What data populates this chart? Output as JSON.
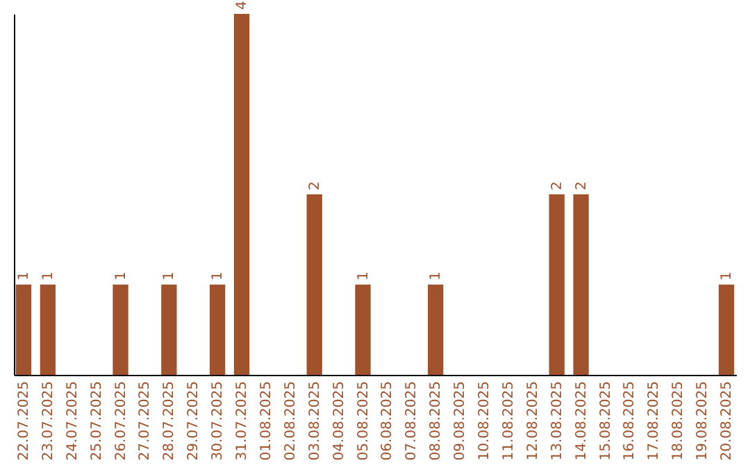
{
  "chart_data": {
    "type": "bar",
    "categories": [
      "22.07.2025",
      "23.07.2025",
      "24.07.2025",
      "25.07.2025",
      "26.07.2025",
      "27.07.2025",
      "28.07.2025",
      "29.07.2025",
      "30.07.2025",
      "31.07.2025",
      "01.08.2025",
      "02.08.2025",
      "03.08.2025",
      "04.08.2025",
      "05.08.2025",
      "06.08.2025",
      "07.08.2025",
      "08.08.2025",
      "09.08.2025",
      "10.08.2025",
      "11.08.2025",
      "12.08.2025",
      "13.08.2025",
      "14.08.2025",
      "15.08.2025",
      "16.08.2025",
      "17.08.2025",
      "18.08.2025",
      "19.08.2025",
      "20.08.2025"
    ],
    "values": [
      1,
      1,
      0,
      0,
      1,
      0,
      1,
      0,
      1,
      4,
      0,
      0,
      2,
      0,
      1,
      0,
      0,
      1,
      0,
      0,
      0,
      0,
      2,
      2,
      0,
      0,
      0,
      0,
      0,
      1
    ],
    "value_labels": [
      "1",
      "1",
      null,
      null,
      "1",
      null,
      "1",
      null,
      "1",
      "4",
      null,
      null,
      "2",
      null,
      "1",
      null,
      null,
      "1",
      null,
      null,
      null,
      null,
      "2",
      "2",
      null,
      null,
      null,
      null,
      null,
      "1"
    ],
    "color": "#a0522d",
    "tick_labels": "x"
  }
}
